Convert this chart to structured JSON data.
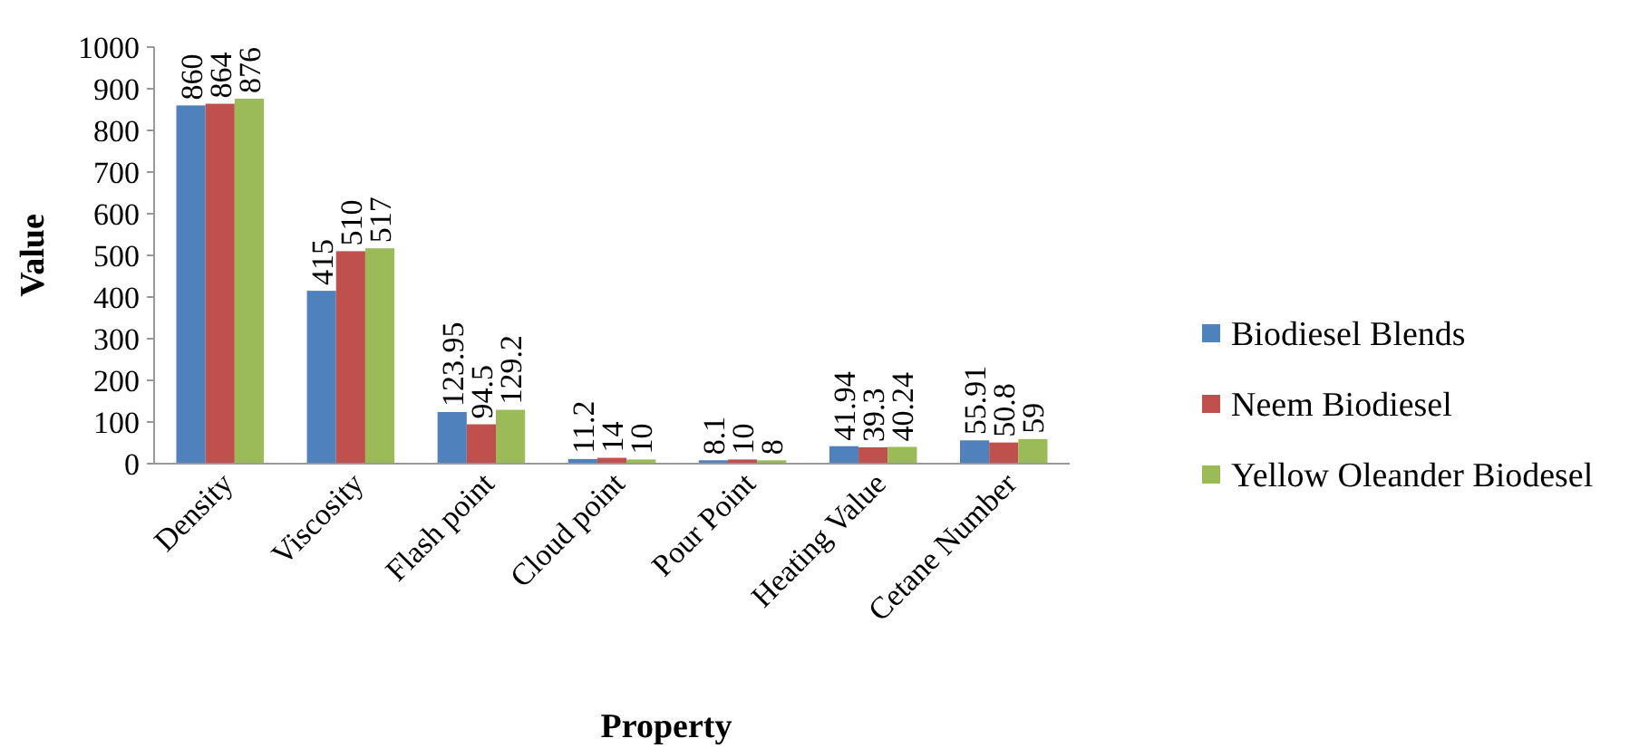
{
  "chart_data": {
    "type": "bar",
    "xlabel": "Property",
    "ylabel": "Value",
    "categories": [
      "Density",
      "Viscosity",
      "Flash point",
      "Cloud point",
      "Pour Point",
      "Heating Value",
      "Cetane Number"
    ],
    "series": [
      {
        "name": "Biodiesel Blends",
        "color": "#4f81bd",
        "values": [
          860,
          415,
          123.95,
          11.2,
          8.1,
          41.94,
          55.91
        ]
      },
      {
        "name": "Neem Biodiesel",
        "color": "#c0504d",
        "values": [
          864,
          510,
          94.5,
          14,
          10,
          39.3,
          50.8
        ]
      },
      {
        "name": "Yellow Oleander Biodesel",
        "color": "#9bbb59",
        "values": [
          876,
          517,
          129.2,
          10,
          8,
          40.24,
          59
        ]
      }
    ],
    "ylim": [
      0,
      1000
    ],
    "yticks": [
      0,
      100,
      200,
      300,
      400,
      500,
      600,
      700,
      800,
      900,
      1000
    ],
    "data_labels": true,
    "legend": "right",
    "grid": false
  }
}
